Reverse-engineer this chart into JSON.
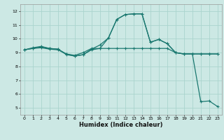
{
  "title": "",
  "xlabel": "Humidex (Indice chaleur)",
  "bg_color": "#cce8e4",
  "grid_color": "#aad4ce",
  "line_color": "#1a7870",
  "xlim": [
    -0.5,
    23.5
  ],
  "ylim": [
    4.5,
    12.5
  ],
  "yticks": [
    5,
    6,
    7,
    8,
    9,
    10,
    11,
    12
  ],
  "xticks": [
    0,
    1,
    2,
    3,
    4,
    5,
    6,
    7,
    8,
    9,
    10,
    11,
    12,
    13,
    14,
    15,
    16,
    17,
    18,
    19,
    20,
    21,
    22,
    23
  ],
  "series1_x": [
    0,
    1,
    2,
    3,
    4,
    5,
    6,
    7,
    8,
    9,
    10,
    11,
    12,
    13,
    14,
    15,
    16,
    17,
    18,
    19,
    20,
    21,
    22,
    23
  ],
  "series1_y": [
    9.2,
    9.35,
    9.45,
    9.3,
    9.25,
    8.85,
    8.75,
    8.85,
    9.25,
    9.55,
    10.05,
    11.4,
    11.75,
    11.8,
    11.8,
    9.75,
    9.95,
    9.65,
    9.0,
    8.9,
    8.9,
    8.9,
    8.9,
    8.9
  ],
  "series2_x": [
    0,
    1,
    2,
    3,
    4,
    5,
    6,
    7,
    8,
    9,
    10,
    11,
    12,
    13,
    14,
    15,
    16,
    17,
    18,
    19,
    20,
    21,
    22,
    23
  ],
  "series2_y": [
    9.2,
    9.3,
    9.4,
    9.3,
    9.25,
    8.9,
    8.8,
    9.0,
    9.3,
    9.3,
    9.3,
    9.3,
    9.3,
    9.3,
    9.3,
    9.3,
    9.3,
    9.3,
    9.0,
    8.9,
    8.9,
    8.9,
    8.9,
    8.9
  ],
  "series3_x": [
    0,
    1,
    2,
    3,
    4,
    5,
    6,
    7,
    8,
    9,
    10,
    11,
    12,
    13,
    14,
    15,
    16,
    17,
    18,
    19,
    20,
    21,
    22,
    23
  ],
  "series3_y": [
    9.2,
    9.3,
    9.35,
    9.25,
    9.2,
    8.9,
    8.75,
    8.85,
    9.2,
    9.3,
    10.05,
    11.4,
    11.75,
    11.8,
    11.8,
    9.75,
    9.95,
    9.65,
    9.0,
    8.9,
    8.9,
    5.45,
    5.5,
    5.1
  ],
  "marker_size": 2.5,
  "linewidth": 0.9
}
